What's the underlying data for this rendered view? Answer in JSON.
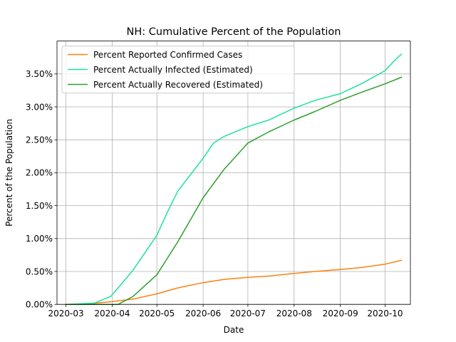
{
  "chart_data": {
    "type": "line",
    "title": "NH: Cumulative Percent of the Population",
    "xlabel": "Date",
    "ylabel": "Percent of the Population",
    "x_axis": {
      "kind": "date",
      "range": [
        "2020-02-24",
        "2020-10-18"
      ],
      "ticks": [
        "2020-03",
        "2020-04",
        "2020-05",
        "2020-06",
        "2020-07",
        "2020-08",
        "2020-09",
        "2020-10"
      ]
    },
    "y_axis": {
      "unit": "percent",
      "range": [
        0,
        0.04
      ],
      "ticks": [
        "0.00%",
        "0.50%",
        "1.00%",
        "1.50%",
        "2.00%",
        "2.50%",
        "3.00%",
        "3.50%"
      ]
    },
    "grid": true,
    "legend": {
      "placement": "top-left"
    },
    "series": [
      {
        "name": "Percent Reported Confirmed Cases",
        "color": "#ff7f0e",
        "points": [
          [
            "2020-03-01",
            0.0
          ],
          [
            "2020-03-15",
            5e-05
          ],
          [
            "2020-03-31",
            0.0004
          ],
          [
            "2020-04-15",
            0.0008
          ],
          [
            "2020-05-01",
            0.0016
          ],
          [
            "2020-05-15",
            0.0025
          ],
          [
            "2020-06-01",
            0.0033
          ],
          [
            "2020-06-15",
            0.0038
          ],
          [
            "2020-07-01",
            0.0041
          ],
          [
            "2020-07-15",
            0.0043
          ],
          [
            "2020-08-01",
            0.0047
          ],
          [
            "2020-08-15",
            0.005
          ],
          [
            "2020-09-01",
            0.0053
          ],
          [
            "2020-09-15",
            0.0056
          ],
          [
            "2020-10-01",
            0.0061
          ],
          [
            "2020-10-12",
            0.0067
          ]
        ]
      },
      {
        "name": "Percent Actually Infected (Estimated)",
        "color": "#1ee29b",
        "points": [
          [
            "2020-03-01",
            0.0
          ],
          [
            "2020-03-20",
            0.0002
          ],
          [
            "2020-03-31",
            0.0012
          ],
          [
            "2020-04-08",
            0.0033
          ],
          [
            "2020-04-15",
            0.0052
          ],
          [
            "2020-05-01",
            0.0105
          ],
          [
            "2020-05-08",
            0.014
          ],
          [
            "2020-05-15",
            0.0172
          ],
          [
            "2020-06-01",
            0.0222
          ],
          [
            "2020-06-08",
            0.0245
          ],
          [
            "2020-06-15",
            0.0255
          ],
          [
            "2020-07-01",
            0.027
          ],
          [
            "2020-07-15",
            0.028
          ],
          [
            "2020-08-01",
            0.0298
          ],
          [
            "2020-08-15",
            0.031
          ],
          [
            "2020-09-01",
            0.032
          ],
          [
            "2020-09-15",
            0.0335
          ],
          [
            "2020-10-01",
            0.0355
          ],
          [
            "2020-10-08",
            0.0372
          ],
          [
            "2020-10-12",
            0.038
          ]
        ]
      },
      {
        "name": "Percent Actually Recovered (Estimated)",
        "color": "#2ca02c",
        "points": [
          [
            "2020-03-01",
            0.0
          ],
          [
            "2020-04-05",
            0.0
          ],
          [
            "2020-04-15",
            0.0012
          ],
          [
            "2020-05-01",
            0.0045
          ],
          [
            "2020-05-15",
            0.0095
          ],
          [
            "2020-06-01",
            0.0162
          ],
          [
            "2020-06-15",
            0.0205
          ],
          [
            "2020-07-01",
            0.0245
          ],
          [
            "2020-07-15",
            0.0262
          ],
          [
            "2020-08-01",
            0.028
          ],
          [
            "2020-08-15",
            0.0293
          ],
          [
            "2020-09-01",
            0.031
          ],
          [
            "2020-09-15",
            0.0322
          ],
          [
            "2020-10-01",
            0.0335
          ],
          [
            "2020-10-12",
            0.0345
          ]
        ]
      }
    ]
  }
}
